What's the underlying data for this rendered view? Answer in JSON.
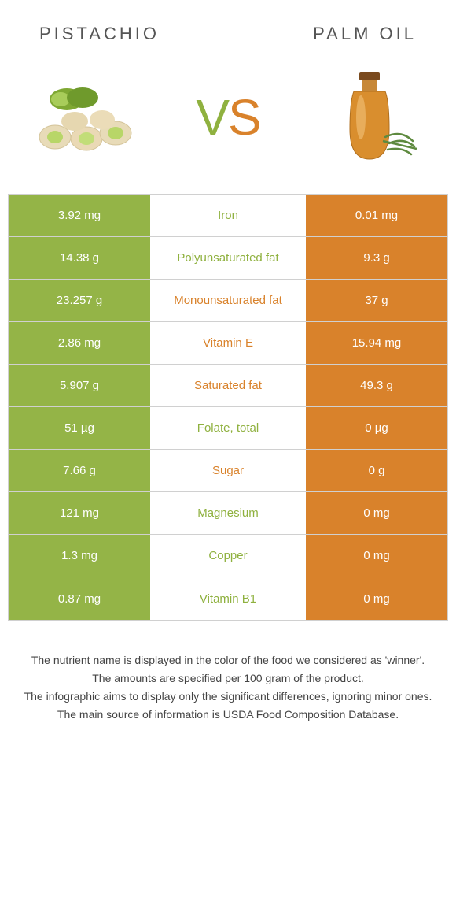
{
  "header": {
    "left_title": "Pistachio",
    "right_title": "Palm oil"
  },
  "vs": {
    "v": "V",
    "s": "S"
  },
  "colors": {
    "left_bg": "#94b447",
    "right_bg": "#d9822b",
    "left_text": "#8fb13f",
    "right_text": "#d9822b",
    "border": "#d0d0d0"
  },
  "rows": [
    {
      "left": "3.92 mg",
      "mid": "Iron",
      "right": "0.01 mg",
      "winner": "left"
    },
    {
      "left": "14.38 g",
      "mid": "Polyunsaturated fat",
      "right": "9.3 g",
      "winner": "left"
    },
    {
      "left": "23.257 g",
      "mid": "Monounsaturated fat",
      "right": "37 g",
      "winner": "right"
    },
    {
      "left": "2.86 mg",
      "mid": "Vitamin E",
      "right": "15.94 mg",
      "winner": "right"
    },
    {
      "left": "5.907 g",
      "mid": "Saturated fat",
      "right": "49.3 g",
      "winner": "right"
    },
    {
      "left": "51 µg",
      "mid": "Folate, total",
      "right": "0 µg",
      "winner": "left"
    },
    {
      "left": "7.66 g",
      "mid": "Sugar",
      "right": "0 g",
      "winner": "right"
    },
    {
      "left": "121 mg",
      "mid": "Magnesium",
      "right": "0 mg",
      "winner": "left"
    },
    {
      "left": "1.3 mg",
      "mid": "Copper",
      "right": "0 mg",
      "winner": "left"
    },
    {
      "left": "0.87 mg",
      "mid": "Vitamin B1",
      "right": "0 mg",
      "winner": "left"
    }
  ],
  "footer": {
    "line1": "The nutrient name is displayed in the color of the food we considered as 'winner'.",
    "line2": "The amounts are specified per 100 gram of the product.",
    "line3": "The infographic aims to display only the significant differences, ignoring minor ones.",
    "line4": "The main source of information is USDA Food Composition Database."
  }
}
